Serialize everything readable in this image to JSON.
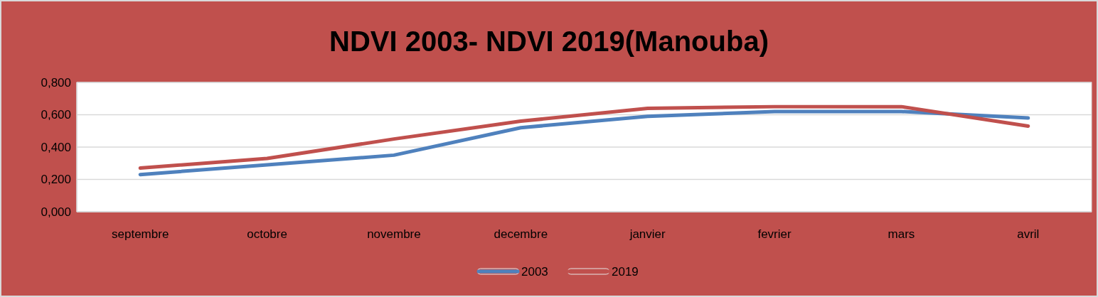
{
  "chart_data": {
    "type": "line",
    "title": "NDVI 2003- NDVI 2019(Manouba)",
    "categories": [
      "septembre",
      "octobre",
      "novembre",
      "decembre",
      "janvier",
      "fevrier",
      "mars",
      "avril"
    ],
    "series": [
      {
        "name": "2003",
        "color": "#4f81bd",
        "values": [
          0.23,
          0.29,
          0.35,
          0.52,
          0.59,
          0.62,
          0.62,
          0.58
        ]
      },
      {
        "name": "2019",
        "color": "#c0504d",
        "values": [
          0.27,
          0.33,
          0.45,
          0.56,
          0.64,
          0.65,
          0.65,
          0.53
        ]
      }
    ],
    "ylim": [
      0,
      0.8
    ],
    "yticks": [
      {
        "value": 0,
        "label": "0,000"
      },
      {
        "value": 0.2,
        "label": "0,200"
      },
      {
        "value": 0.4,
        "label": "0,400"
      },
      {
        "value": 0.6,
        "label": "0,600"
      },
      {
        "value": 0.8,
        "label": "0,800"
      }
    ],
    "grid": "y",
    "legend": "bottom",
    "marker": "none"
  }
}
